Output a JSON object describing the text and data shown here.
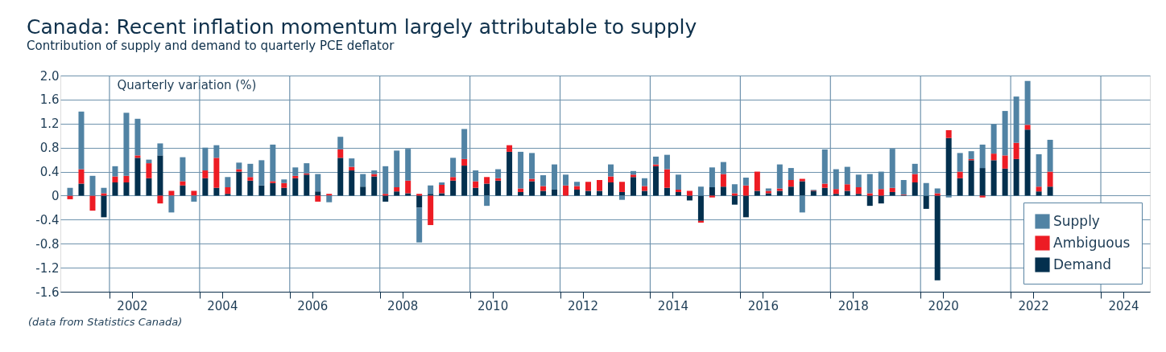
{
  "chart_data": {
    "type": "bar",
    "stacked": true,
    "title": "Canada: Recent inflation momentum largely attributable to supply",
    "subtitle": "Contribution of supply and demand to quarterly PCE deflator",
    "ylabel": "Quarterly variation (%)",
    "annotations": [
      "(data from Statistics Canada)"
    ],
    "x": [
      2001.125,
      2001.375,
      2001.625,
      2001.875,
      2002.125,
      2002.375,
      2002.625,
      2002.875,
      2003.125,
      2003.375,
      2003.625,
      2003.875,
      2004.125,
      2004.375,
      2004.625,
      2004.875,
      2005.125,
      2005.375,
      2005.625,
      2005.875,
      2006.125,
      2006.375,
      2006.625,
      2006.875,
      2007.125,
      2007.375,
      2007.625,
      2007.875,
      2008.125,
      2008.375,
      2008.625,
      2008.875,
      2009.125,
      2009.375,
      2009.625,
      2009.875,
      2010.125,
      2010.375,
      2010.625,
      2010.875,
      2011.125,
      2011.375,
      2011.625,
      2011.875,
      2012.125,
      2012.375,
      2012.625,
      2012.875,
      2013.125,
      2013.375,
      2013.625,
      2013.875,
      2014.125,
      2014.375,
      2014.625,
      2014.875,
      2015.125,
      2015.375,
      2015.625,
      2015.875,
      2016.125,
      2016.375,
      2016.625,
      2016.875,
      2017.125,
      2017.375,
      2017.625,
      2017.875,
      2018.125,
      2018.375,
      2018.625,
      2018.875,
      2019.125,
      2019.375,
      2019.625,
      2019.875,
      2020.125,
      2020.375,
      2020.625,
      2020.875,
      2021.125,
      2021.375,
      2021.625,
      2021.875,
      2022.125,
      2022.375,
      2022.625,
      2022.875
    ],
    "series": [
      {
        "name": "Demand",
        "color": "#03304e",
        "values": [
          0,
          0.2,
          0,
          -0.36,
          0.22,
          0.22,
          0.63,
          0.29,
          0.67,
          0,
          0.17,
          0,
          0.29,
          0.13,
          0.03,
          0.4,
          0.25,
          0.17,
          0.21,
          0.13,
          0.29,
          0.35,
          0.07,
          0,
          0.63,
          0.42,
          0.15,
          0.32,
          -0.1,
          0.07,
          0.04,
          -0.2,
          0.03,
          0.04,
          0.25,
          0.5,
          0.13,
          0.2,
          0.25,
          0.73,
          0.06,
          0.24,
          0.08,
          0.1,
          0,
          0.1,
          0.08,
          0.08,
          0.22,
          0.06,
          0.31,
          0.08,
          0.49,
          0.13,
          0.06,
          -0.08,
          -0.42,
          0.14,
          0.15,
          -0.15,
          -0.36,
          0.08,
          0.04,
          0.08,
          0.15,
          0.24,
          0.08,
          0.13,
          0.03,
          0.08,
          0.03,
          -0.17,
          -0.13,
          0.06,
          0.01,
          0.22,
          -0.22,
          -1.41,
          0.96,
          0.29,
          0.59,
          0.46,
          0.59,
          0.45,
          0.61,
          1.1,
          0.07,
          0.15
        ]
      },
      {
        "name": "Ambiguous",
        "color": "#ed1c24",
        "values": [
          -0.06,
          0.24,
          -0.25,
          0.04,
          0.1,
          0.11,
          0.04,
          0.25,
          -0.13,
          0.08,
          0.07,
          0.08,
          0.13,
          0.5,
          0.11,
          0.04,
          0.06,
          0,
          0.03,
          0.08,
          0.04,
          0.02,
          -0.1,
          0.03,
          0.14,
          0.06,
          0,
          0.04,
          0.03,
          0.07,
          0.21,
          0.03,
          -0.49,
          0.14,
          0.06,
          0.11,
          0.11,
          0.11,
          0.04,
          0.11,
          0.06,
          0.04,
          0.08,
          0,
          0.17,
          0.06,
          0.15,
          0.18,
          0.1,
          0.17,
          0.04,
          0.08,
          0.03,
          0.31,
          0.04,
          0.08,
          -0.03,
          -0.03,
          0.21,
          0.04,
          0.17,
          0.32,
          0.04,
          0.04,
          0.11,
          0.04,
          0.01,
          0.07,
          0.08,
          0.11,
          0.11,
          0.04,
          0.11,
          0.07,
          0.01,
          0.14,
          0,
          0.04,
          0.13,
          0.11,
          0.02,
          -0.03,
          0.11,
          0.22,
          0.27,
          0.08,
          0.08,
          0.25
        ]
      },
      {
        "name": "Supply",
        "color": "#5183a4",
        "values": [
          0.13,
          0.96,
          0.33,
          0.09,
          0.17,
          1.05,
          0.61,
          0.06,
          0.2,
          -0.28,
          0.4,
          -0.1,
          0.38,
          0.21,
          0.17,
          0.11,
          0.22,
          0.42,
          0.61,
          0.06,
          0.14,
          0.17,
          0.29,
          -0.11,
          0.21,
          0.14,
          0.21,
          0.06,
          0.46,
          0.61,
          0.53,
          -0.58,
          0.14,
          0.04,
          0.32,
          0.5,
          0.18,
          -0.17,
          0.15,
          0,
          0.61,
          0.43,
          0.18,
          0.42,
          0.18,
          0.07,
          0,
          0,
          0.2,
          -0.07,
          0.06,
          0.13,
          0.13,
          0.24,
          0.25,
          0,
          0.15,
          0.33,
          0.2,
          0.15,
          0.13,
          0,
          0.04,
          0.4,
          0.2,
          -0.28,
          0.01,
          0.57,
          0.33,
          0.29,
          0.21,
          0.32,
          0.29,
          0.65,
          0.24,
          0.17,
          0.21,
          0.08,
          -0.03,
          0.31,
          0.13,
          0.39,
          0.49,
          0.74,
          0.77,
          0.73,
          0.54,
          0.53
        ]
      }
    ],
    "xlim": [
      2001,
      2025
    ],
    "xticks": [
      {
        "value": 2002,
        "label": null
      },
      {
        "value": 2002.5,
        "label": "2002"
      },
      {
        "value": 2004,
        "label": null
      },
      {
        "value": 2004.5,
        "label": "2004"
      },
      {
        "value": 2006,
        "label": null
      },
      {
        "value": 2006.5,
        "label": "2006"
      },
      {
        "value": 2008,
        "label": null
      },
      {
        "value": 2008.5,
        "label": "2008"
      },
      {
        "value": 2010,
        "label": null
      },
      {
        "value": 2010.5,
        "label": "2010"
      },
      {
        "value": 2012,
        "label": null
      },
      {
        "value": 2012.5,
        "label": "2012"
      },
      {
        "value": 2014,
        "label": null
      },
      {
        "value": 2014.5,
        "label": "2014"
      },
      {
        "value": 2016,
        "label": null
      },
      {
        "value": 2016.5,
        "label": "2016"
      },
      {
        "value": 2018,
        "label": null
      },
      {
        "value": 2018.5,
        "label": "2018"
      },
      {
        "value": 2020,
        "label": null
      },
      {
        "value": 2020.5,
        "label": "2020"
      },
      {
        "value": 2022,
        "label": null
      },
      {
        "value": 2022.5,
        "label": "2022"
      },
      {
        "value": 2024,
        "label": null
      },
      {
        "value": 2024.5,
        "label": "2024"
      }
    ],
    "ylim": [
      -1.6,
      2.0
    ],
    "yticks": [
      -1.6,
      -1.2,
      -0.8,
      -0.4,
      0,
      0.4,
      0.8,
      1.2,
      1.6,
      {
        "value": 2.0,
        "label": "2.0"
      }
    ],
    "grid": true,
    "legend": "bottom right"
  }
}
